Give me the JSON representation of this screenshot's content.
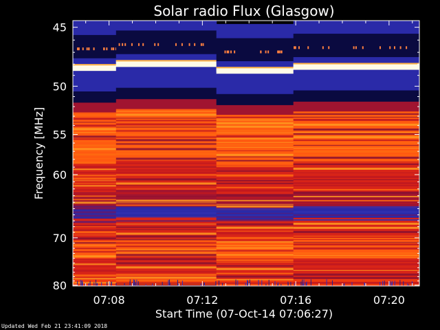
{
  "chart_data": {
    "type": "heatmap",
    "title": "Solar radio Flux (Glasgow)",
    "xlabel": "Start Time (07-Oct-14 07:06:27)",
    "ylabel": "Frequency [MHz]",
    "y_ticks": [
      45,
      50,
      55,
      60,
      70,
      80
    ],
    "y_tick_labels": [
      "45",
      "50",
      "55",
      "60",
      "70",
      "80"
    ],
    "ylim": [
      44.5,
      80.2
    ],
    "y_scale": "reciprocal",
    "x_ticks": [
      "07:08",
      "07:12",
      "07:16",
      "07:20"
    ],
    "x_tick_minutes": [
      8,
      12,
      16,
      20
    ],
    "xlim_minutes": [
      6.45,
      21.3
    ],
    "segment_boundaries_minutes": [
      8.3,
      12.6,
      15.9
    ],
    "bands": [
      {
        "f0": 44.5,
        "f1": 45.6,
        "level": "low"
      },
      {
        "f0": 45.6,
        "f1": 47.5,
        "level": "very-low"
      },
      {
        "f0": 47.5,
        "f1": 48.0,
        "level": "low"
      },
      {
        "f0": 48.0,
        "f1": 48.6,
        "level": "saturated"
      },
      {
        "f0": 48.6,
        "f1": 50.5,
        "level": "low"
      },
      {
        "f0": 50.5,
        "f1": 51.6,
        "level": "very-low"
      },
      {
        "f0": 51.6,
        "f1": 52.6,
        "level": "mid-low"
      },
      {
        "f0": 52.6,
        "f1": 53.4,
        "level": "high"
      },
      {
        "f0": 53.4,
        "f1": 58.5,
        "level": "high"
      },
      {
        "f0": 58.5,
        "f1": 62.5,
        "level": "mid"
      },
      {
        "f0": 62.5,
        "f1": 65.0,
        "level": "mid-low"
      },
      {
        "f0": 65.0,
        "f1": 66.6,
        "level": "low"
      },
      {
        "f0": 66.6,
        "f1": 70.5,
        "level": "mid"
      },
      {
        "f0": 70.5,
        "f1": 74.0,
        "level": "high"
      },
      {
        "f0": 74.0,
        "f1": 78.5,
        "level": "mid"
      },
      {
        "f0": 78.5,
        "f1": 80.2,
        "level": "mid-high"
      }
    ],
    "colors": {
      "saturated": "#fffbe8",
      "high": "#ff5a10",
      "mid-high": "#f03a10",
      "mid": "#d82418",
      "mid-low": "#a01430",
      "low": "#2a2aa8",
      "very-low": "#0a0a40",
      "background": "#000000",
      "text": "#ffffff"
    }
  },
  "footer": {
    "updated": "Updated Wed Feb 21 23:41:09 2018"
  }
}
